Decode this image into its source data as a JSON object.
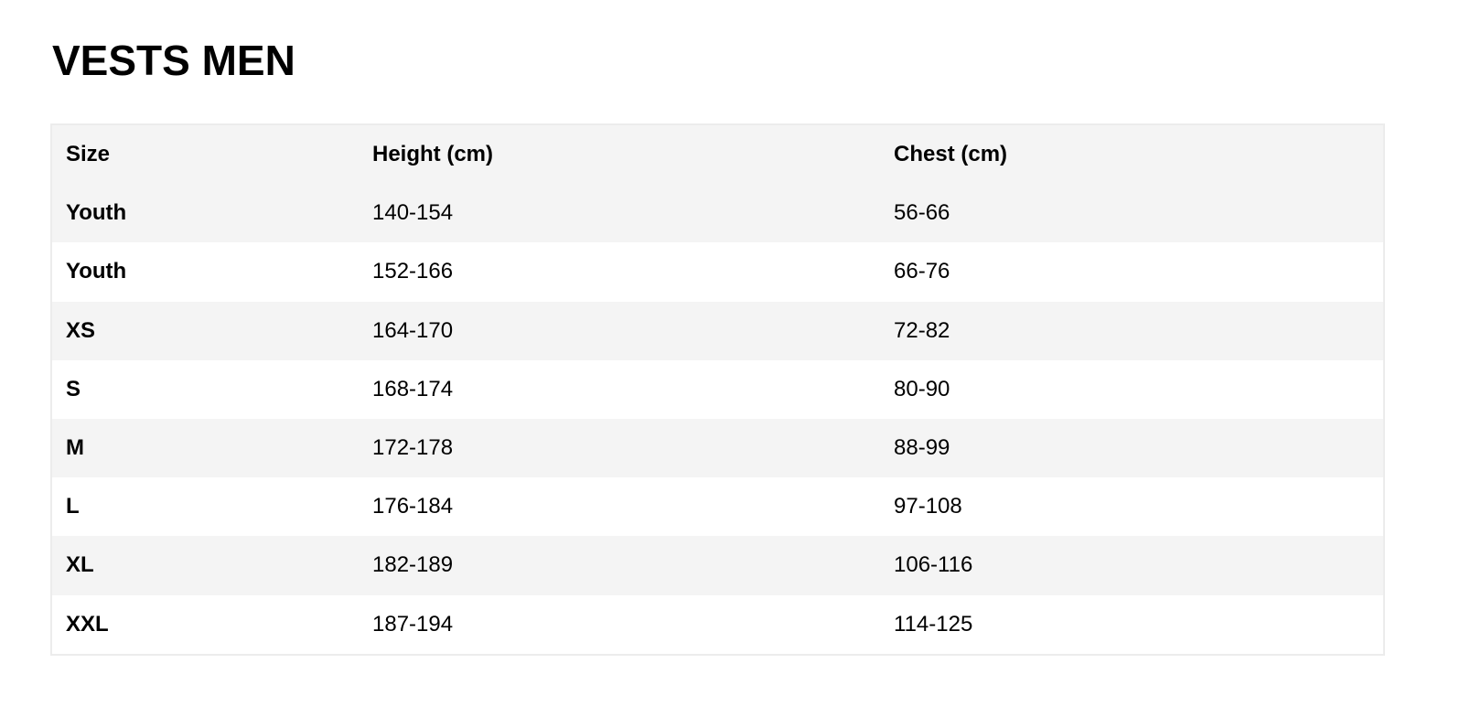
{
  "title": "VESTS MEN",
  "table": {
    "headers": [
      "Size",
      "Height (cm)",
      "Chest (cm)"
    ],
    "rows": [
      [
        "Youth",
        "140-154",
        "56-66"
      ],
      [
        "Youth",
        "152-166",
        "66-76"
      ],
      [
        "XS",
        "164-170",
        "72-82"
      ],
      [
        "S",
        "168-174",
        "80-90"
      ],
      [
        "M",
        "172-178",
        "88-99"
      ],
      [
        "L",
        "176-184",
        "97-108"
      ],
      [
        "XL",
        "182-189",
        "106-116"
      ],
      [
        "XXL",
        "187-194",
        "114-125"
      ]
    ]
  },
  "colors": {
    "stripe": "#f4f4f4",
    "border": "#ececec",
    "text": "#000000"
  }
}
